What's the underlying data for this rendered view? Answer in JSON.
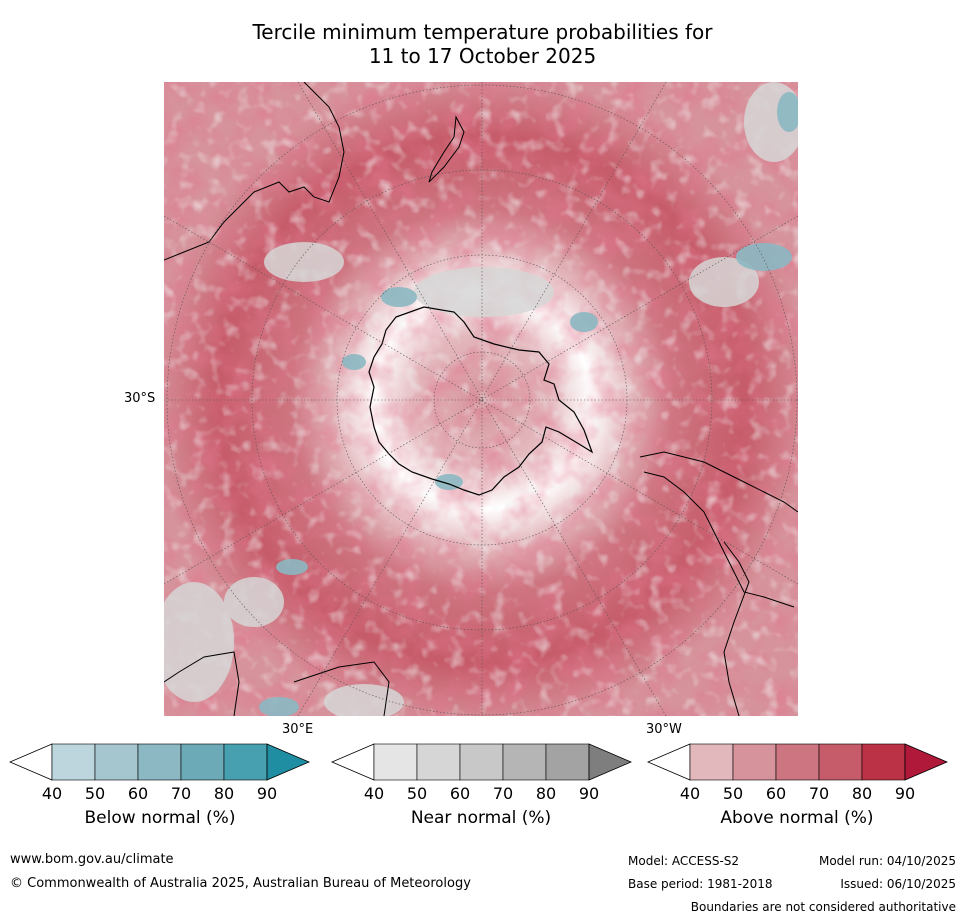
{
  "title_line1": "Tercile minimum temperature probabilities for",
  "title_line2": "11 to 17 October 2025",
  "map": {
    "lat_label": "30°S",
    "lon_label_left": "30°E",
    "lon_label_right": "30°W",
    "colors": {
      "above": [
        "#e3b8bd",
        "#d6939b",
        "#cd7580",
        "#c65b69",
        "#bb3247",
        "#b0193a"
      ],
      "near": [
        "#e5e5e5",
        "#d6d6d6",
        "#c8c8c8",
        "#b5b5b5",
        "#a3a3a3",
        "#7e7e7e"
      ],
      "below": [
        "#bdd5dc",
        "#a5c6ce",
        "#8bb8c2",
        "#6baab6",
        "#47a0b0",
        "#1f8ea2"
      ]
    }
  },
  "colorbars": [
    {
      "name": "below",
      "title": "Below normal (%)",
      "ticks": [
        "40",
        "50",
        "60",
        "70",
        "80",
        "90"
      ]
    },
    {
      "name": "near",
      "title": "Near normal (%)",
      "ticks": [
        "40",
        "50",
        "60",
        "70",
        "80",
        "90"
      ]
    },
    {
      "name": "above",
      "title": "Above normal (%)",
      "ticks": [
        "40",
        "50",
        "60",
        "70",
        "80",
        "90"
      ]
    }
  ],
  "footer": {
    "website": "www.bom.gov.au/climate",
    "copyright": "© Commonwealth of Australia 2025, Australian Bureau of Meteorology",
    "model": "Model: ACCESS-S2",
    "model_run": "Model run: 04/10/2025",
    "base_period": "Base period: 1981-2018",
    "issued": "Issued: 06/10/2025",
    "disclaimer": "Boundaries are not considered authoritative"
  }
}
